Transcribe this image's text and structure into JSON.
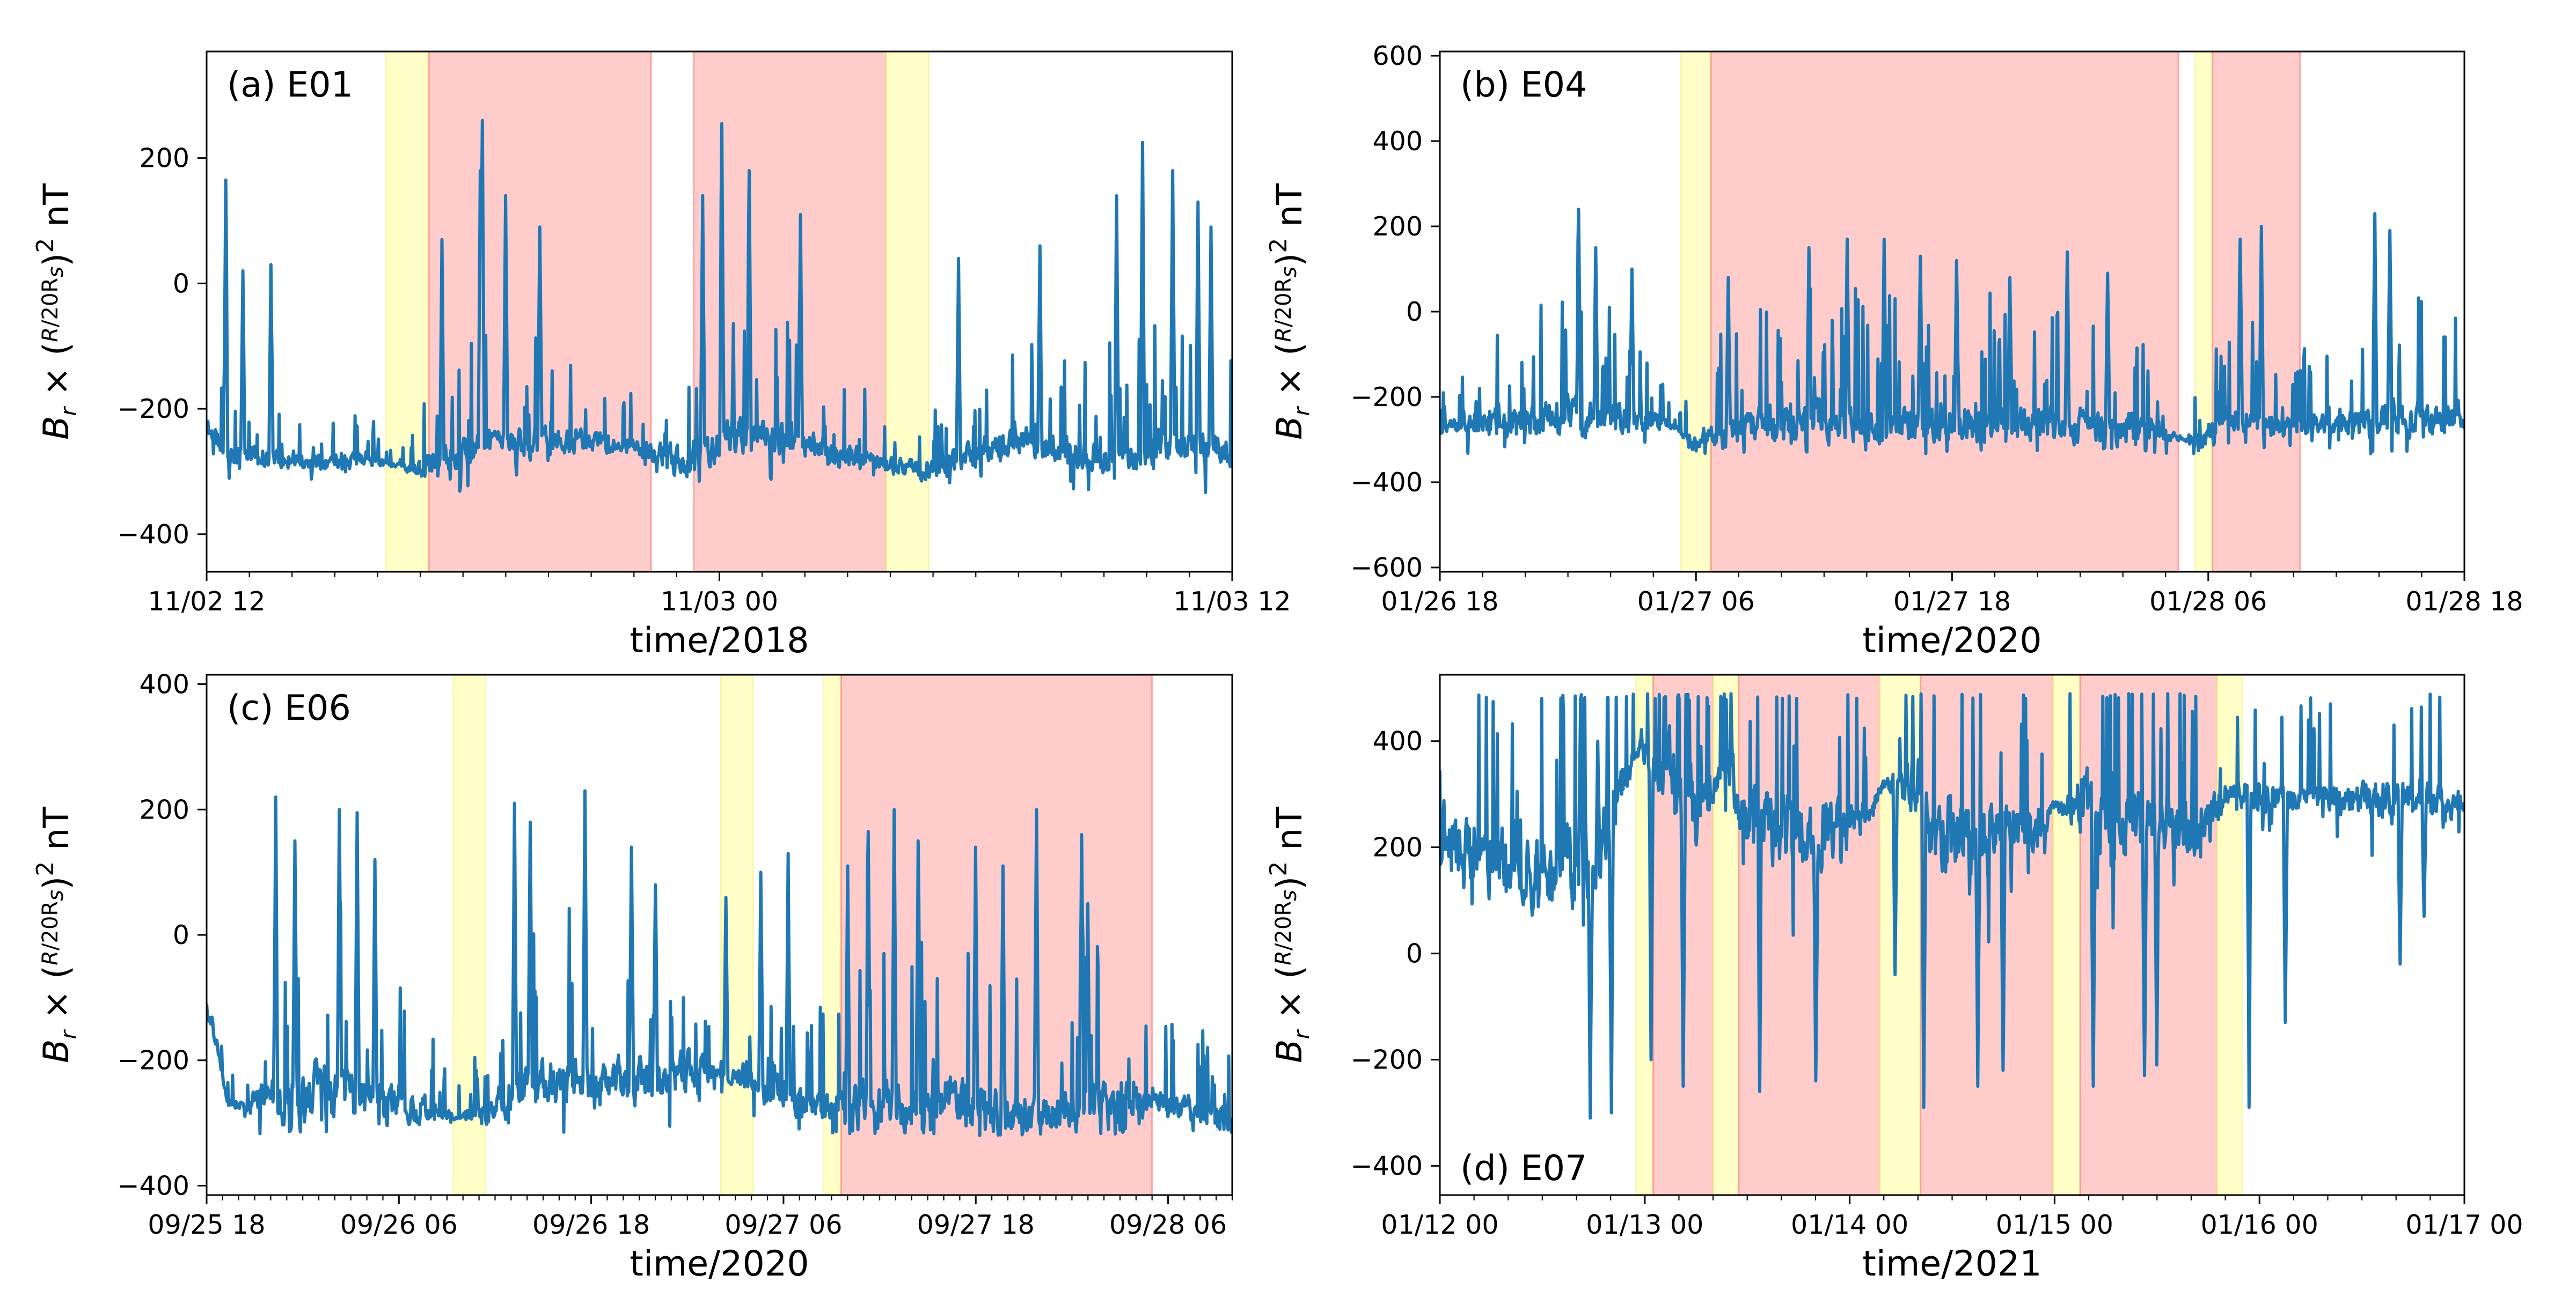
{
  "figure": {
    "line_color": "#1f77b4",
    "yellow_band_color": "#ffff99",
    "red_band_color": "#ff9999",
    "ylabel_parts": {
      "br": "B",
      "r": "r",
      "times": "×",
      "open": "(",
      "num": "R",
      "den": "20R",
      "s": "s",
      "close": ")",
      "sq": "2",
      "unit": "nT"
    }
  },
  "chart_data": [
    {
      "type": "line",
      "panel_label": "(a) E01",
      "xlabel": "time/2018",
      "x_units": "hours since 11/02 12:00",
      "xlim": [
        0,
        24
      ],
      "ylim": [
        -460,
        370
      ],
      "yticks": [
        -400,
        -200,
        0,
        200
      ],
      "ytick_labels": [
        "−400",
        "−200",
        "0",
        "200"
      ],
      "xticks": [
        0,
        12,
        24
      ],
      "xtick_labels": [
        "11/02 12",
        "11/03 00",
        "11/03 12"
      ],
      "x_minor_step": 1,
      "shaded_regions": [
        {
          "kind": "yellow",
          "x": [
            4.2,
            5.2
          ]
        },
        {
          "kind": "red",
          "x": [
            5.2,
            10.4
          ]
        },
        {
          "kind": "red",
          "x": [
            11.4,
            15.9
          ]
        },
        {
          "kind": "yellow",
          "x": [
            15.9,
            16.9
          ]
        }
      ],
      "series_profile": {
        "base": [
          [
            0,
            -230
          ],
          [
            0.5,
            -270
          ],
          [
            2,
            -285
          ],
          [
            4,
            -280
          ],
          [
            5,
            -300
          ],
          [
            6,
            -265
          ],
          [
            8,
            -250
          ],
          [
            10,
            -260
          ],
          [
            11,
            -285
          ],
          [
            12.5,
            -240
          ],
          [
            14.5,
            -265
          ],
          [
            16,
            -290
          ],
          [
            17,
            -300
          ],
          [
            19,
            -250
          ],
          [
            21,
            -280
          ],
          [
            22.5,
            -260
          ],
          [
            24,
            -270
          ]
        ],
        "noise": [
          [
            0,
            60
          ],
          [
            2,
            35
          ],
          [
            4,
            40
          ],
          [
            4.5,
            8
          ],
          [
            5.2,
            70
          ],
          [
            7,
            80
          ],
          [
            10,
            35
          ],
          [
            11.4,
            85
          ],
          [
            13.5,
            90
          ],
          [
            15.5,
            45
          ],
          [
            17.5,
            60
          ],
          [
            19,
            70
          ],
          [
            21,
            85
          ],
          [
            22.5,
            90
          ],
          [
            24,
            70
          ]
        ],
        "floor": -335,
        "seed": 11,
        "spikes": [
          [
            0.45,
            165
          ],
          [
            0.85,
            20
          ],
          [
            1.5,
            30
          ],
          [
            5.5,
            70
          ],
          [
            6.4,
            180
          ],
          [
            6.45,
            260
          ],
          [
            7.0,
            140
          ],
          [
            7.8,
            90
          ],
          [
            11.6,
            140
          ],
          [
            12.05,
            255
          ],
          [
            12.7,
            180
          ],
          [
            13.9,
            110
          ],
          [
            17.6,
            40
          ],
          [
            19.5,
            60
          ],
          [
            21.3,
            140
          ],
          [
            21.9,
            225
          ],
          [
            22.6,
            180
          ],
          [
            23.2,
            130
          ],
          [
            23.5,
            90
          ]
        ]
      }
    },
    {
      "type": "line",
      "panel_label": "(b) E04",
      "xlabel": "time/2020",
      "x_units": "hours since 01/26 18:00",
      "xlim": [
        0,
        48
      ],
      "ylim": [
        -610,
        610
      ],
      "yticks": [
        -600,
        -400,
        -200,
        0,
        200,
        400,
        600
      ],
      "ytick_labels": [
        "−600",
        "−400",
        "−200",
        "0",
        "200",
        "400",
        "600"
      ],
      "xticks": [
        0,
        12,
        24,
        36,
        48
      ],
      "xtick_labels": [
        "01/26 18",
        "01/27 06",
        "01/27 18",
        "01/28 06",
        "01/28 18"
      ],
      "x_minor_step": 2,
      "shaded_regions": [
        {
          "kind": "yellow",
          "x": [
            11.3,
            12.7
          ]
        },
        {
          "kind": "red",
          "x": [
            12.7,
            34.6
          ]
        },
        {
          "kind": "yellow",
          "x": [
            35.4,
            36.2
          ]
        },
        {
          "kind": "red",
          "x": [
            36.2,
            40.3
          ]
        }
      ],
      "series_profile": {
        "base": [
          [
            0,
            -275
          ],
          [
            4,
            -250
          ],
          [
            8,
            -245
          ],
          [
            11,
            -270
          ],
          [
            12,
            -315
          ],
          [
            13,
            -280
          ],
          [
            18,
            -255
          ],
          [
            24,
            -260
          ],
          [
            30,
            -265
          ],
          [
            34,
            -285
          ],
          [
            35.5,
            -310
          ],
          [
            37,
            -255
          ],
          [
            40,
            -270
          ],
          [
            44,
            -250
          ],
          [
            48,
            -245
          ]
        ],
        "noise": [
          [
            0,
            40
          ],
          [
            3,
            110
          ],
          [
            6,
            140
          ],
          [
            9,
            110
          ],
          [
            11,
            15
          ],
          [
            13,
            120
          ],
          [
            20,
            140
          ],
          [
            27,
            130
          ],
          [
            33,
            100
          ],
          [
            34.8,
            15
          ],
          [
            36.3,
            120
          ],
          [
            40,
            70
          ],
          [
            42,
            90
          ],
          [
            45,
            130
          ],
          [
            48,
            100
          ]
        ],
        "floor": -335,
        "seed": 23,
        "spikes": [
          [
            6.5,
            240
          ],
          [
            7.3,
            150
          ],
          [
            9.0,
            100
          ],
          [
            13.5,
            80
          ],
          [
            17.3,
            150
          ],
          [
            19.1,
            170
          ],
          [
            20.8,
            170
          ],
          [
            22.5,
            130
          ],
          [
            24.2,
            120
          ],
          [
            26.7,
            80
          ],
          [
            29.4,
            140
          ],
          [
            31.3,
            90
          ],
          [
            37.5,
            170
          ],
          [
            38.5,
            200
          ],
          [
            43.8,
            230
          ],
          [
            44.5,
            190
          ]
        ]
      }
    },
    {
      "type": "line",
      "panel_label": "(c) E06",
      "xlabel": "time/2020",
      "x_units": "hours since 09/25 18:00",
      "xlim": [
        0,
        64
      ],
      "ylim": [
        -415,
        415
      ],
      "yticks": [
        -400,
        -200,
        0,
        200,
        400
      ],
      "ytick_labels": [
        "−400",
        "−200",
        "0",
        "200",
        "400"
      ],
      "xticks": [
        0,
        12,
        24,
        36,
        48,
        60
      ],
      "xtick_labels": [
        "09/25 18",
        "09/26 06",
        "09/26 18",
        "09/27 06",
        "09/27 18",
        "09/28 06"
      ],
      "x_minor_step": 1,
      "shaded_regions": [
        {
          "kind": "yellow",
          "x": [
            15.4,
            17.4
          ]
        },
        {
          "kind": "yellow",
          "x": [
            32.1,
            34.1
          ]
        },
        {
          "kind": "yellow",
          "x": [
            38.5,
            39.6
          ]
        },
        {
          "kind": "red",
          "x": [
            39.6,
            59.0
          ]
        }
      ],
      "series_profile": {
        "base": [
          [
            0,
            -110
          ],
          [
            0.7,
            -180
          ],
          [
            1.3,
            -270
          ],
          [
            4,
            -260
          ],
          [
            8,
            -250
          ],
          [
            12,
            -270
          ],
          [
            15.5,
            -290
          ],
          [
            17.5,
            -285
          ],
          [
            20,
            -240
          ],
          [
            26,
            -230
          ],
          [
            32,
            -215
          ],
          [
            34,
            -240
          ],
          [
            38,
            -270
          ],
          [
            40,
            -280
          ],
          [
            46,
            -265
          ],
          [
            52,
            -290
          ],
          [
            56,
            -265
          ],
          [
            60,
            -270
          ],
          [
            64,
            -295
          ]
        ],
        "noise": [
          [
            0,
            50
          ],
          [
            1.5,
            20
          ],
          [
            3,
            60
          ],
          [
            5,
            140
          ],
          [
            8,
            140
          ],
          [
            12,
            120
          ],
          [
            15.4,
            15
          ],
          [
            18,
            60
          ],
          [
            20,
            120
          ],
          [
            25,
            120
          ],
          [
            30,
            110
          ],
          [
            32,
            30
          ],
          [
            34.5,
            80
          ],
          [
            38,
            60
          ],
          [
            41,
            130
          ],
          [
            46,
            130
          ],
          [
            52,
            110
          ],
          [
            56,
            120
          ],
          [
            60,
            60
          ],
          [
            64,
            60
          ]
        ],
        "floor": -320,
        "seed": 37,
        "spikes": [
          [
            4.3,
            220
          ],
          [
            5.5,
            150
          ],
          [
            8.3,
            200
          ],
          [
            9.4,
            195
          ],
          [
            10.5,
            120
          ],
          [
            19.2,
            210
          ],
          [
            20.2,
            180
          ],
          [
            23.6,
            230
          ],
          [
            26.5,
            140
          ],
          [
            28.0,
            80
          ],
          [
            32.4,
            60
          ],
          [
            34.6,
            100
          ],
          [
            36.3,
            130
          ],
          [
            40.0,
            110
          ],
          [
            41.3,
            165
          ],
          [
            42.9,
            200
          ],
          [
            44.4,
            150
          ],
          [
            48.0,
            140
          ],
          [
            49.7,
            110
          ],
          [
            51.8,
            200
          ],
          [
            54.6,
            160
          ],
          [
            55.0,
            50
          ]
        ]
      }
    },
    {
      "type": "line",
      "panel_label": "(d) E07",
      "xlabel": "time/2021",
      "x_units": "hours since 01/12 00:00",
      "xlim": [
        0,
        120
      ],
      "ylim": [
        -455,
        525
      ],
      "yticks": [
        -400,
        -200,
        0,
        200,
        400
      ],
      "ytick_labels": [
        "−400",
        "−200",
        "0",
        "200",
        "400"
      ],
      "xticks": [
        0,
        24,
        48,
        72,
        96,
        120
      ],
      "xtick_labels": [
        "01/12 00",
        "01/13 00",
        "01/14 00",
        "01/15 00",
        "01/16 00",
        "01/17 00"
      ],
      "x_minor_step": 4,
      "shaded_regions": [
        {
          "kind": "yellow",
          "x": [
            23.0,
            25.0
          ]
        },
        {
          "kind": "red",
          "x": [
            25.0,
            32.0
          ]
        },
        {
          "kind": "yellow",
          "x": [
            32.0,
            35.0
          ]
        },
        {
          "kind": "red",
          "x": [
            35.0,
            51.5
          ]
        },
        {
          "kind": "yellow",
          "x": [
            51.5,
            56.3
          ]
        },
        {
          "kind": "red",
          "x": [
            56.3,
            71.8
          ]
        },
        {
          "kind": "yellow",
          "x": [
            71.8,
            75.0
          ]
        },
        {
          "kind": "red",
          "x": [
            75.0,
            91.0
          ]
        },
        {
          "kind": "yellow",
          "x": [
            91.0,
            94.0
          ]
        }
      ],
      "series_profile": {
        "base": [
          [
            0,
            220
          ],
          [
            6,
            180
          ],
          [
            12,
            150
          ],
          [
            18,
            170
          ],
          [
            20,
            280
          ],
          [
            23.5,
            390
          ],
          [
            26,
            340
          ],
          [
            30,
            250
          ],
          [
            33.5,
            350
          ],
          [
            35,
            290
          ],
          [
            40,
            230
          ],
          [
            45,
            230
          ],
          [
            50,
            250
          ],
          [
            52,
            320
          ],
          [
            55.5,
            320
          ],
          [
            58,
            240
          ],
          [
            65,
            220
          ],
          [
            70,
            230
          ],
          [
            72,
            280
          ],
          [
            74.5,
            280
          ],
          [
            80,
            240
          ],
          [
            86,
            240
          ],
          [
            90,
            250
          ],
          [
            92,
            300
          ],
          [
            96,
            300
          ],
          [
            102,
            290
          ],
          [
            110,
            290
          ],
          [
            116,
            280
          ],
          [
            120,
            280
          ]
        ],
        "noise": [
          [
            0,
            170
          ],
          [
            12,
            210
          ],
          [
            18,
            260
          ],
          [
            22,
            120
          ],
          [
            23.5,
            40
          ],
          [
            25,
            150
          ],
          [
            29,
            260
          ],
          [
            32,
            60
          ],
          [
            35,
            200
          ],
          [
            40,
            240
          ],
          [
            45,
            230
          ],
          [
            51,
            80
          ],
          [
            52,
            25
          ],
          [
            56.5,
            230
          ],
          [
            64,
            240
          ],
          [
            70,
            150
          ],
          [
            72,
            25
          ],
          [
            75.2,
            200
          ],
          [
            82,
            220
          ],
          [
            90,
            160
          ],
          [
            92,
            60
          ],
          [
            94,
            80
          ],
          [
            102,
            90
          ],
          [
            110,
            110
          ],
          [
            116,
            110
          ],
          [
            120,
            60
          ]
        ],
        "floor": -440,
        "ceiling": 490,
        "seed": 51,
        "spikes": [
          [
            16.5,
            480
          ],
          [
            18.5,
            400
          ],
          [
            17.6,
            -310
          ],
          [
            20.1,
            -300
          ],
          [
            24.7,
            -200
          ],
          [
            28.5,
            -250
          ],
          [
            37.5,
            -260
          ],
          [
            44.0,
            -240
          ],
          [
            53.3,
            -40
          ],
          [
            56.7,
            -290
          ],
          [
            63.0,
            -250
          ],
          [
            66.0,
            -220
          ],
          [
            76.5,
            -250
          ],
          [
            82.5,
            -230
          ],
          [
            84.0,
            -210
          ],
          [
            94.8,
            -290
          ],
          [
            99.0,
            -130
          ],
          [
            112.5,
            -20
          ],
          [
            115.3,
            70
          ]
        ]
      }
    }
  ]
}
